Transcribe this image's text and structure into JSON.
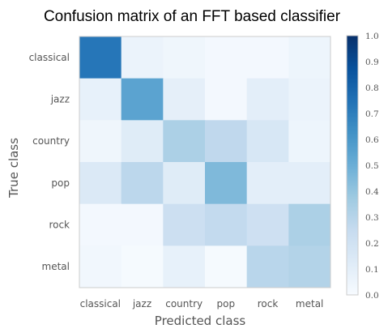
{
  "chart_data": {
    "type": "heatmap",
    "title": "Confusion matrix of an FFT based classifier",
    "xlabel": "Predicted class",
    "ylabel": "True class",
    "x_categories": [
      "classical",
      "jazz",
      "country",
      "pop",
      "rock",
      "metal"
    ],
    "y_categories": [
      "classical",
      "jazz",
      "country",
      "pop",
      "rock",
      "metal"
    ],
    "values": [
      [
        0.73,
        0.06,
        0.04,
        0.02,
        0.02,
        0.05
      ],
      [
        0.08,
        0.55,
        0.09,
        0.02,
        0.1,
        0.06
      ],
      [
        0.04,
        0.12,
        0.33,
        0.27,
        0.16,
        0.05
      ],
      [
        0.14,
        0.28,
        0.12,
        0.45,
        0.1,
        0.1
      ],
      [
        0.02,
        0.02,
        0.22,
        0.26,
        0.21,
        0.33
      ],
      [
        0.03,
        0.01,
        0.08,
        0.01,
        0.29,
        0.31
      ]
    ],
    "colorbar": {
      "range": [
        0.0,
        1.0
      ],
      "ticks": [
        "0.0",
        "0.1",
        "0.2",
        "0.3",
        "0.4",
        "0.5",
        "0.6",
        "0.7",
        "0.8",
        "0.9",
        "1.0"
      ],
      "colormap": "Blues",
      "low_color": "#f7fbff",
      "high_color": "#08306b"
    },
    "grid": false
  }
}
